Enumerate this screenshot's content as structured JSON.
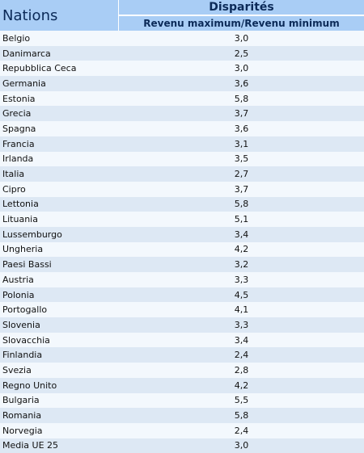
{
  "header": {
    "nations": "Nations",
    "disparites": "Disparités",
    "subheader": "Revenu maximum/Revenu minimum"
  },
  "rows": [
    {
      "name": "Belgio",
      "value": "3,0"
    },
    {
      "name": "Danimarca",
      "value": "2,5"
    },
    {
      "name": "Repubblica Ceca",
      "value": "3,0"
    },
    {
      "name": "Germania",
      "value": "3,6"
    },
    {
      "name": "Estonia",
      "value": "5,8"
    },
    {
      "name": "Grecia",
      "value": "3,7"
    },
    {
      "name": "Spagna",
      "value": "3,6"
    },
    {
      "name": "Francia",
      "value": "3,1"
    },
    {
      "name": "Irlanda",
      "value": "3,5"
    },
    {
      "name": "Italia",
      "value": "2,7"
    },
    {
      "name": "Cipro",
      "value": "3,7"
    },
    {
      "name": "Lettonia",
      "value": "5,8"
    },
    {
      "name": "Lituania",
      "value": "5,1"
    },
    {
      "name": "Lussemburgo",
      "value": "3,4"
    },
    {
      "name": "Ungheria",
      "value": "4,2"
    },
    {
      "name": "Paesi Bassi",
      "value": "3,2"
    },
    {
      "name": "Austria",
      "value": "3,3"
    },
    {
      "name": "Polonia",
      "value": "4,5"
    },
    {
      "name": "Portogallo",
      "value": "4,1"
    },
    {
      "name": "Slovenia",
      "value": "3,3"
    },
    {
      "name": "Slovacchia",
      "value": "3,4"
    },
    {
      "name": "Finlandia",
      "value": "2,4"
    },
    {
      "name": "Svezia",
      "value": "2,8"
    },
    {
      "name": "Regno Unito",
      "value": "4,2"
    },
    {
      "name": "Bulgaria",
      "value": "5,5"
    },
    {
      "name": "Romania",
      "value": "5,8"
    },
    {
      "name": "Norvegia",
      "value": "2,4"
    },
    {
      "name": "Media UE 25",
      "value": "3,0"
    }
  ]
}
